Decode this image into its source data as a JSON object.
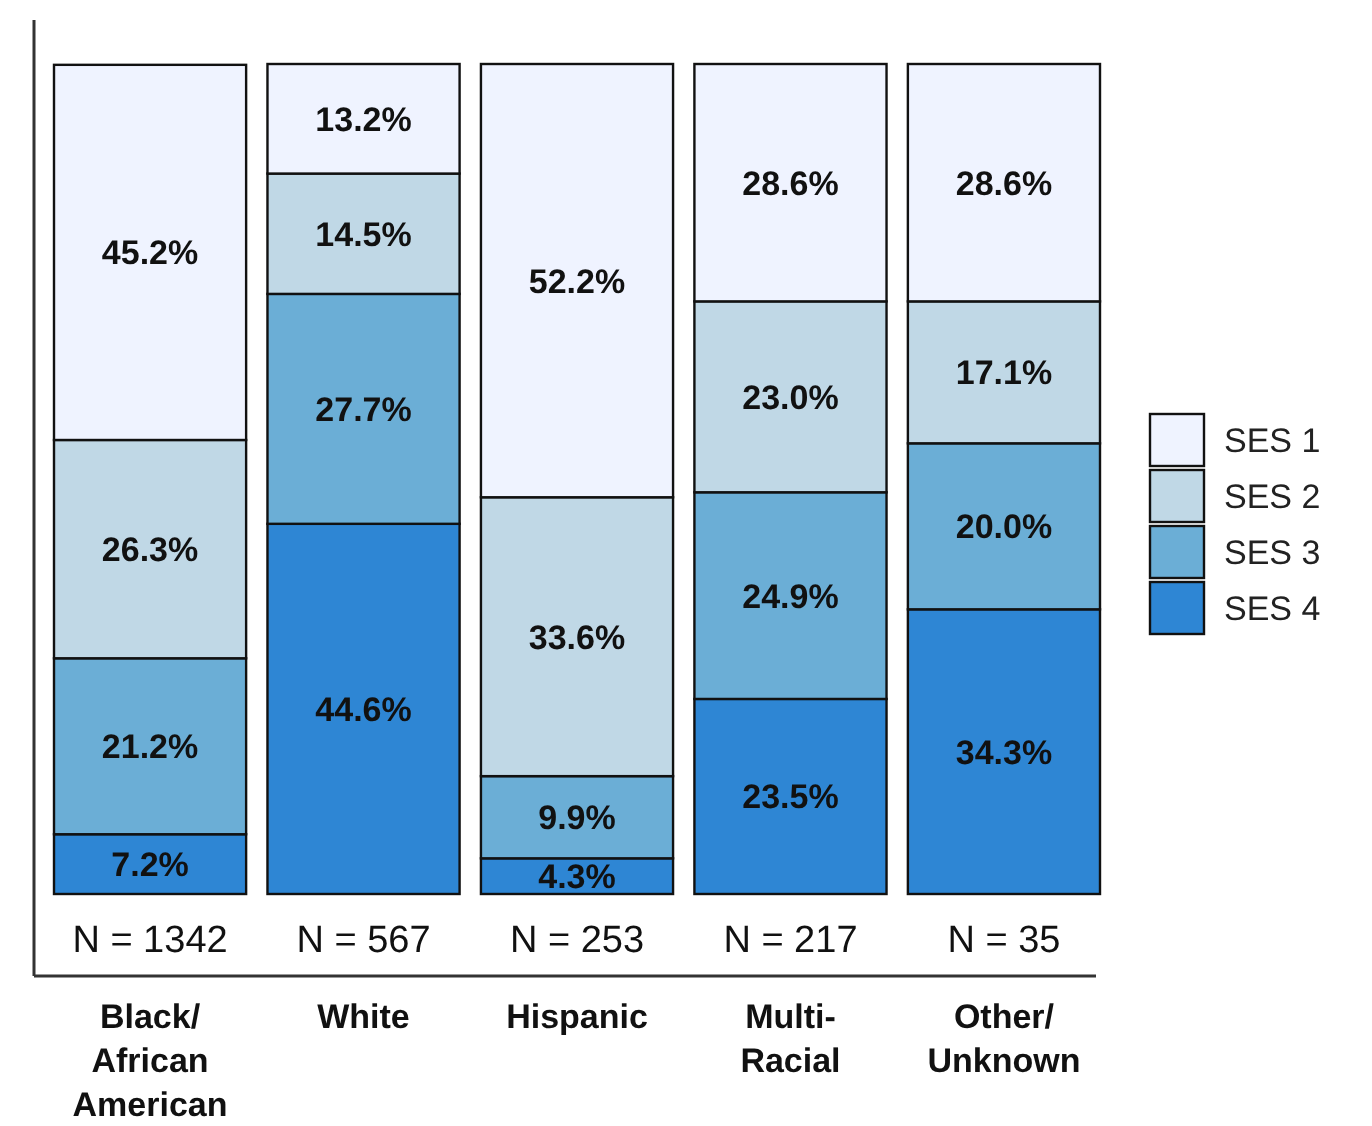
{
  "chart_data": {
    "type": "bar",
    "stacked": true,
    "categories": [
      "Black/\nAfrican\nAmerican",
      "White",
      "Hispanic",
      "Multi-\nRacial",
      "Other/\nUnknown"
    ],
    "series": [
      {
        "name": "SES 4",
        "color": "#2e86d4",
        "values": [
          7.2,
          44.6,
          4.3,
          23.5,
          34.3
        ],
        "value_labels": [
          "7.2%",
          "44.6%",
          "4.3%",
          "23.5%",
          "34.3%"
        ]
      },
      {
        "name": "SES 3",
        "color": "#6baed6",
        "values": [
          21.2,
          27.7,
          9.9,
          24.9,
          20.0
        ],
        "value_labels": [
          "21.2%",
          "27.7%",
          "9.9%",
          "24.9%",
          "20.0%"
        ]
      },
      {
        "name": "SES 2",
        "color": "#c0d8e6",
        "values": [
          26.3,
          14.5,
          33.6,
          23.0,
          17.1
        ],
        "value_labels": [
          "26.3%",
          "14.5%",
          "33.6%",
          "23.0%",
          "17.1%"
        ]
      },
      {
        "name": "SES 1",
        "color": "#eff3ff",
        "values": [
          45.2,
          13.2,
          52.2,
          28.6,
          28.6
        ],
        "value_labels": [
          "45.2%",
          "13.2%",
          "52.2%",
          "28.6%",
          "28.6%"
        ]
      }
    ],
    "ylim": [
      0,
      100
    ],
    "tick_labels": "x",
    "legend": "right",
    "annotations": [
      "N = 1342",
      "N = 567",
      "N = 253",
      "N = 217",
      "N = 35"
    ]
  }
}
